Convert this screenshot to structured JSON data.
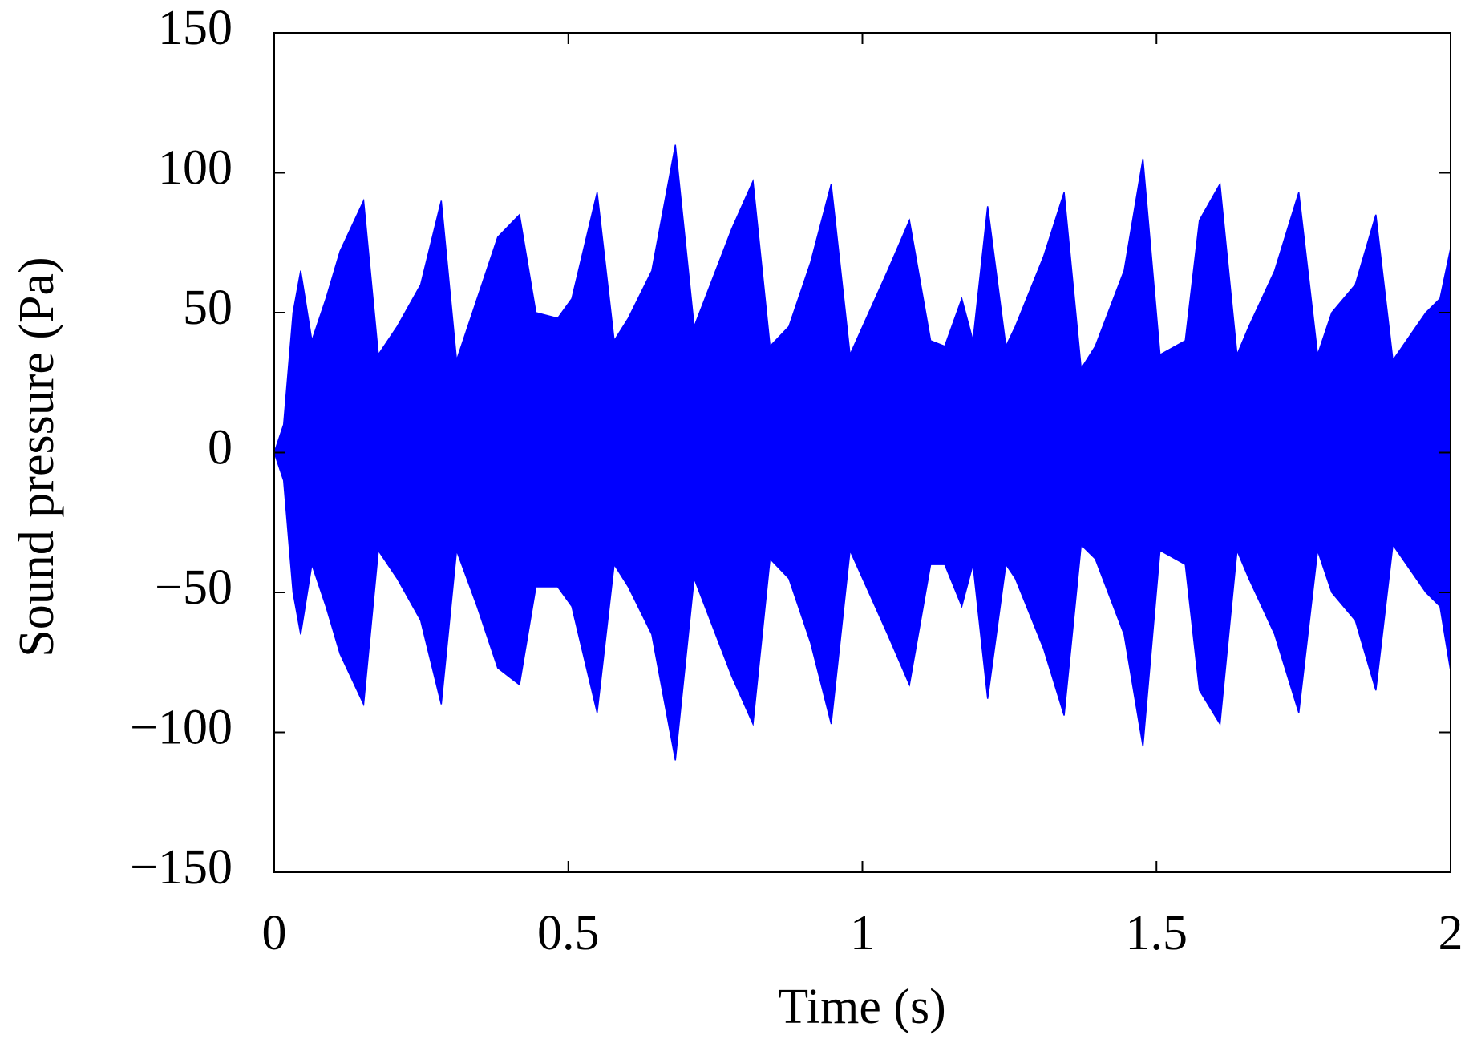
{
  "chart_data": {
    "type": "envelope",
    "x_label": "Time (s)",
    "y_label": "Sound pressure (Pa)",
    "color": "#0000ff",
    "x": [
      0,
      0.016,
      0.032,
      0.045,
      0.064,
      0.088,
      0.112,
      0.152,
      0.177,
      0.209,
      0.249,
      0.284,
      0.31,
      0.345,
      0.38,
      0.417,
      0.445,
      0.482,
      0.506,
      0.549,
      0.578,
      0.602,
      0.642,
      0.682,
      0.714,
      0.778,
      0.814,
      0.843,
      0.875,
      0.912,
      0.947,
      0.979,
      1.043,
      1.08,
      1.116,
      1.14,
      1.169,
      1.188,
      1.213,
      1.244,
      1.26,
      1.308,
      1.343,
      1.372,
      1.396,
      1.445,
      1.477,
      1.506,
      1.549,
      1.573,
      1.608,
      1.637,
      1.657,
      1.701,
      1.742,
      1.774,
      1.798,
      1.838,
      1.873,
      1.902,
      1.958,
      1.982,
      2
    ],
    "upper": [
      0,
      10,
      50,
      65,
      40,
      55,
      72,
      90,
      35,
      45,
      60,
      90,
      33,
      55,
      77,
      85,
      50,
      48,
      55,
      93,
      40,
      48,
      65,
      110,
      45,
      80,
      97,
      38,
      45,
      68,
      96,
      35,
      65,
      83,
      40,
      38,
      55,
      40,
      88,
      38,
      45,
      70,
      93,
      30,
      38,
      65,
      105,
      35,
      40,
      83,
      96,
      35,
      45,
      65,
      93,
      35,
      50,
      60,
      85,
      33,
      50,
      55,
      73
    ],
    "lower": [
      0,
      -10,
      -50,
      -65,
      -40,
      -55,
      -72,
      -90,
      -35,
      -45,
      -60,
      -90,
      -35,
      -55,
      -77,
      -83,
      -48,
      -48,
      -55,
      -93,
      -40,
      -48,
      -65,
      -110,
      -45,
      -80,
      -97,
      -38,
      -45,
      -68,
      -97,
      -35,
      -65,
      -83,
      -40,
      -40,
      -55,
      -40,
      -88,
      -40,
      -45,
      -70,
      -94,
      -33,
      -38,
      -65,
      -105,
      -35,
      -40,
      -85,
      -97,
      -35,
      -45,
      -65,
      -93,
      -35,
      -50,
      -60,
      -85,
      -33,
      -50,
      -55,
      -78
    ],
    "xlim": [
      0,
      2
    ],
    "xticks": [
      0,
      0.5,
      1,
      1.5,
      2
    ],
    "ylim": [
      -150,
      150
    ],
    "yticks": [
      {
        "value": -150,
        "label": "−150"
      },
      {
        "value": -100,
        "label": "−100"
      },
      {
        "value": -50,
        "label": "−50"
      },
      0,
      50,
      100,
      150
    ]
  }
}
